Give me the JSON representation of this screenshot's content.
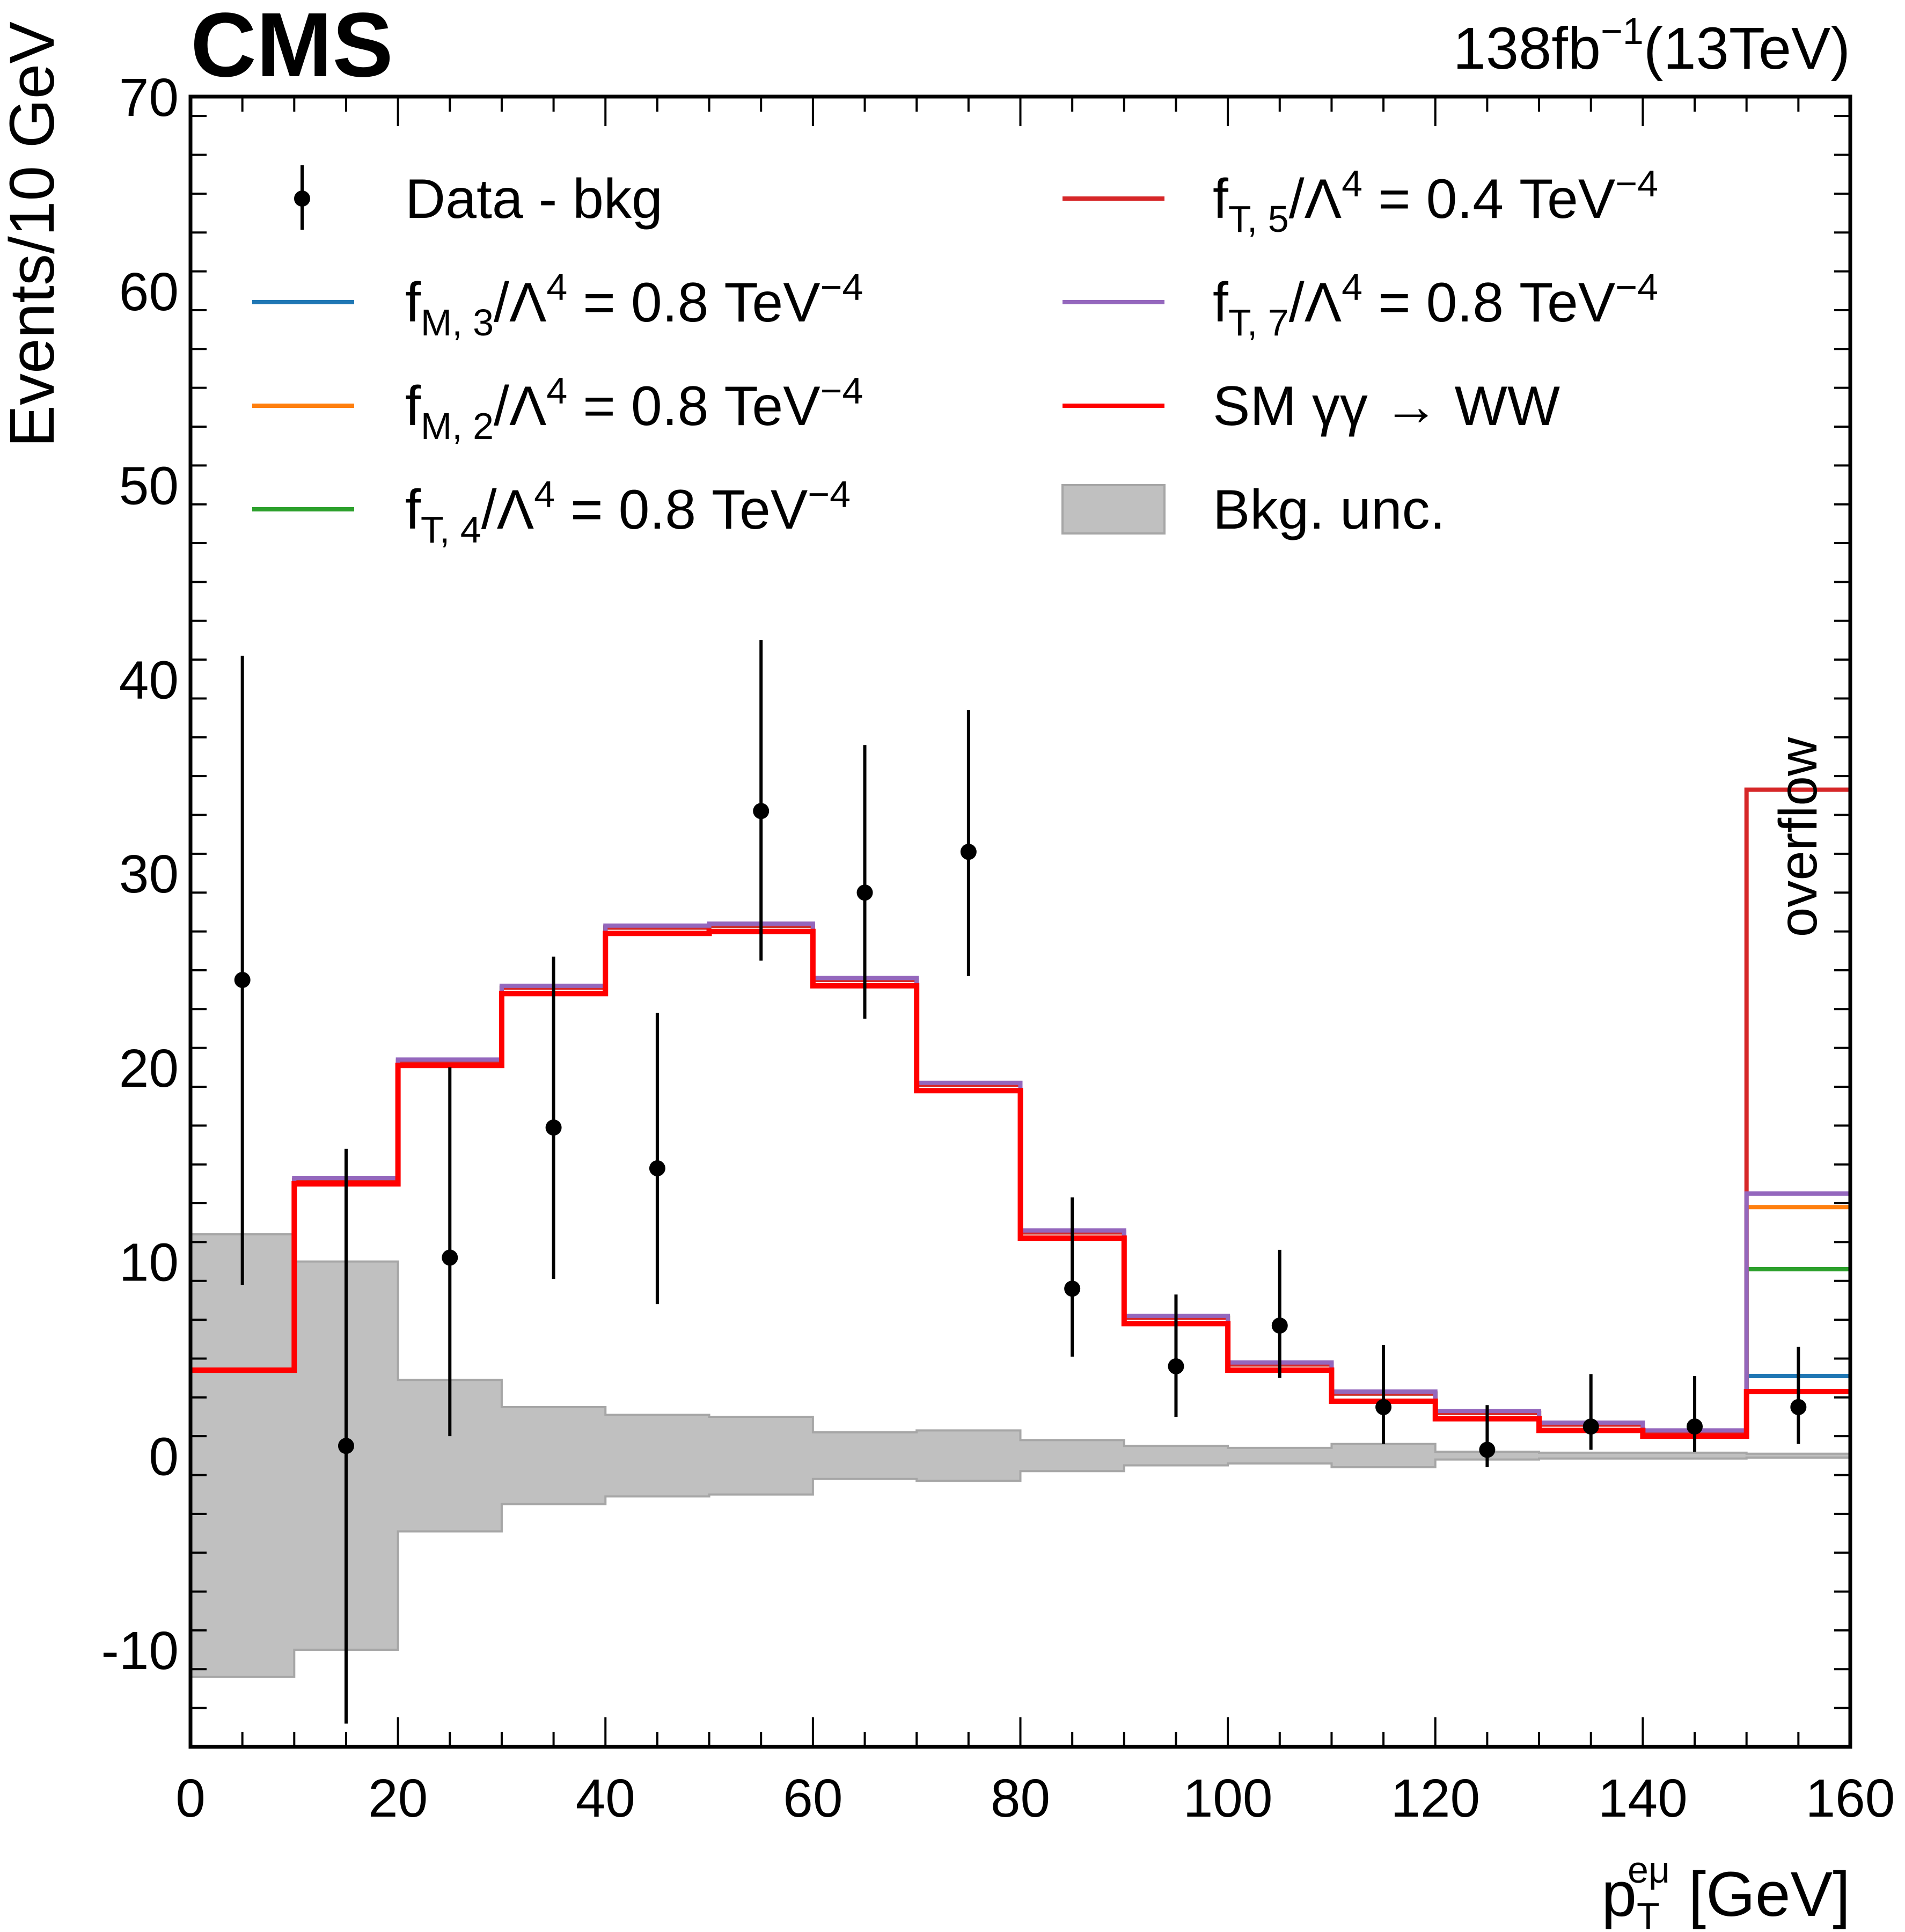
{
  "header": {
    "experiment": "CMS",
    "lumi_value": "138",
    "lumi_unit_base": "fb",
    "lumi_unit_exp": "−1",
    "energy": "(13TeV)"
  },
  "chart_data": {
    "type": "histogram",
    "title": "",
    "xlabel": {
      "main": "p",
      "sub": "T",
      "sup": "eμ",
      "unit": "[GeV]"
    },
    "ylabel": "Events/10 GeV",
    "xlim": [
      0,
      160
    ],
    "ylim": [
      -15,
      70
    ],
    "x_ticks": [
      0,
      20,
      40,
      60,
      80,
      100,
      120,
      140,
      160
    ],
    "y_ticks": [
      -10,
      0,
      10,
      20,
      30,
      40,
      50,
      60,
      70
    ],
    "bin_edges": [
      0,
      10,
      20,
      30,
      40,
      50,
      60,
      70,
      80,
      90,
      100,
      110,
      120,
      130,
      140,
      150,
      160
    ],
    "overflow_label": "overflow",
    "data": {
      "label": "Data - bkg",
      "x": [
        5,
        15,
        25,
        35,
        45,
        55,
        65,
        75,
        85,
        95,
        105,
        115,
        125,
        135,
        145,
        155
      ],
      "y": [
        24.5,
        0.5,
        10.2,
        16.9,
        14.8,
        33.2,
        29.0,
        31.1,
        8.6,
        4.6,
        6.7,
        2.5,
        0.3,
        1.5,
        1.5,
        2.5
      ],
      "y_low": [
        8.8,
        -13.8,
        1.0,
        9.1,
        7.8,
        25.5,
        22.5,
        24.7,
        5.1,
        2.0,
        4.0,
        0.6,
        -0.6,
        0.3,
        0.2,
        0.6
      ],
      "y_high": [
        41.2,
        15.8,
        20.0,
        25.7,
        22.8,
        42.0,
        36.6,
        38.4,
        13.3,
        8.3,
        10.6,
        5.7,
        2.6,
        4.2,
        4.1,
        5.6
      ]
    },
    "series": [
      {
        "name": "fM3",
        "label": {
          "sub": "M, 3",
          "value": "0.8"
        },
        "color": "#1f77b4",
        "width": 8,
        "values": [
          4.4,
          14.2,
          20.3,
          24.1,
          27.2,
          27.3,
          24.5,
          19.1,
          11.5,
          7.1,
          4.7,
          3.2,
          2.2,
          1.6,
          1.2,
          4.1
        ]
      },
      {
        "name": "fM2",
        "label": {
          "sub": "M, 2",
          "value": "0.8"
        },
        "color": "#ff7f0e",
        "width": 8,
        "values": [
          4.4,
          14.2,
          20.3,
          24.1,
          27.2,
          27.3,
          24.5,
          19.1,
          11.5,
          7.1,
          4.7,
          3.2,
          2.2,
          1.6,
          1.2,
          12.8
        ]
      },
      {
        "name": "fT4",
        "label": {
          "sub": "T, 4",
          "value": "0.8"
        },
        "color": "#2ca02c",
        "width": 8,
        "values": [
          4.4,
          14.2,
          20.3,
          24.1,
          27.2,
          27.3,
          24.5,
          19.1,
          11.5,
          7.1,
          4.7,
          3.2,
          2.2,
          1.6,
          1.2,
          9.6
        ]
      },
      {
        "name": "fT5",
        "label": {
          "sub": "T, 5",
          "value": "0.4"
        },
        "color": "#d62728",
        "width": 8,
        "values": [
          4.4,
          14.2,
          20.3,
          24.1,
          27.2,
          27.3,
          24.5,
          19.1,
          11.5,
          7.1,
          4.7,
          3.2,
          2.2,
          1.6,
          1.2,
          34.3
        ]
      },
      {
        "name": "fT7",
        "label": {
          "sub": "T, 7",
          "value": "0.8"
        },
        "color": "#9467bd",
        "width": 8,
        "values": [
          4.4,
          14.3,
          20.4,
          24.2,
          27.3,
          27.4,
          24.6,
          19.2,
          11.6,
          7.2,
          4.8,
          3.3,
          2.3,
          1.7,
          1.3,
          13.5
        ]
      },
      {
        "name": "SM",
        "label": {
          "text": "SM γγ → WW"
        },
        "color": "#ff0000",
        "width": 10,
        "values": [
          4.4,
          14.0,
          20.1,
          23.8,
          26.9,
          27.0,
          24.2,
          18.8,
          11.2,
          6.8,
          4.4,
          2.8,
          1.9,
          1.3,
          1.0,
          3.3
        ]
      }
    ],
    "bkg_unc": {
      "label": "Bkg. unc.",
      "color": "#c0c0c0",
      "edge_color": "#a6a6a6",
      "up": [
        11.4,
        10.0,
        3.9,
        2.5,
        2.1,
        2.0,
        1.2,
        1.3,
        0.8,
        0.5,
        0.4,
        0.6,
        0.2,
        0.15,
        0.15,
        0.1
      ],
      "down": [
        -11.4,
        -10.0,
        -3.9,
        -2.5,
        -2.1,
        -2.0,
        -1.2,
        -1.3,
        -0.8,
        -0.5,
        -0.4,
        -0.6,
        -0.2,
        -0.15,
        -0.15,
        -0.1
      ]
    },
    "legend": {
      "placement": "top",
      "coupling_ratio": "/Λ",
      "coupling_ratio_exp": "4",
      "unit": "TeV",
      "unit_exp": "−4",
      "symbol_f": "f",
      "equals": "="
    }
  }
}
